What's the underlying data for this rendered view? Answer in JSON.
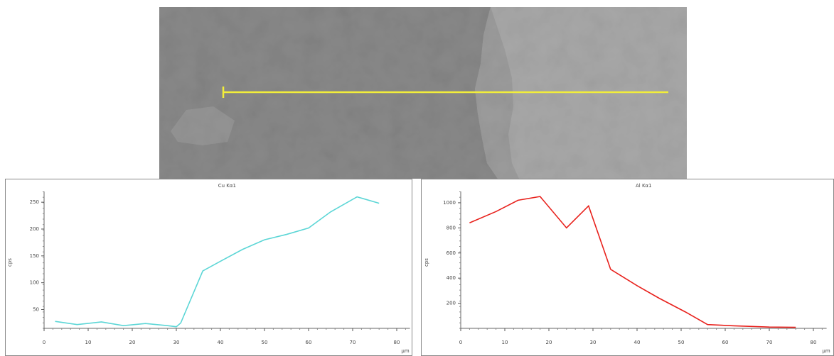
{
  "chart_data": [
    {
      "type": "line",
      "title": "Cu Kα1",
      "xlabel": "µm",
      "ylabel": "cps",
      "color": "#5cd6d6",
      "x": [
        2.5,
        7.5,
        13,
        18,
        23,
        28,
        30,
        31,
        36,
        40,
        45,
        50,
        55,
        60,
        65,
        71,
        76
      ],
      "values": [
        28,
        22,
        27,
        20,
        24,
        20,
        18,
        25,
        122,
        140,
        162,
        180,
        190,
        202,
        232,
        260,
        248
      ],
      "xlim": [
        0,
        83
      ],
      "ylim": [
        15,
        270
      ],
      "xticks": [
        0,
        10,
        20,
        30,
        40,
        50,
        60,
        70,
        80
      ],
      "yticks": [
        50,
        100,
        150,
        200,
        250
      ]
    },
    {
      "type": "line",
      "title": "Al Kα1",
      "xlabel": "µm",
      "ylabel": "cps",
      "color": "#e8211c",
      "x": [
        2,
        8,
        13,
        18,
        24,
        29,
        34,
        40,
        45,
        51,
        56,
        62,
        70,
        76
      ],
      "values": [
        840,
        930,
        1020,
        1050,
        800,
        975,
        470,
        340,
        240,
        130,
        30,
        20,
        10,
        8
      ],
      "xlim": [
        0,
        83
      ],
      "ylim": [
        0,
        1090
      ],
      "xticks": [
        0,
        10,
        20,
        30,
        40,
        50,
        60,
        70,
        80
      ],
      "yticks": [
        200,
        400,
        600,
        800,
        1000
      ]
    }
  ]
}
